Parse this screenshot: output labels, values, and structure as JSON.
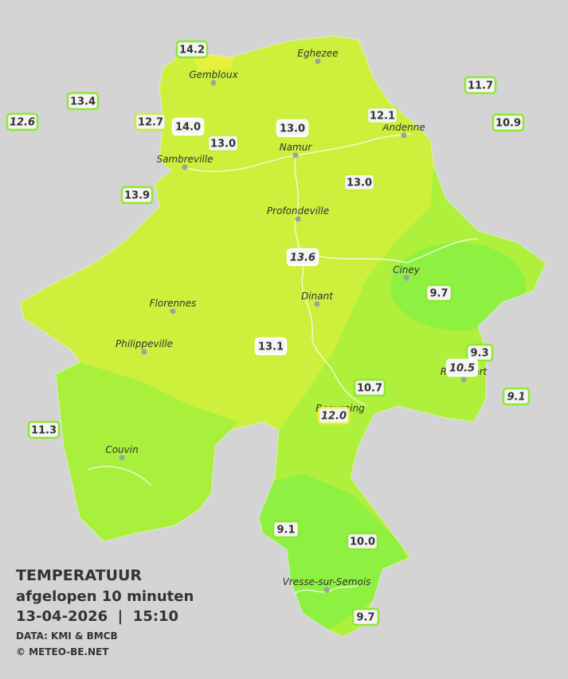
{
  "title": "TEMPERATUUR",
  "subtitle": "afgelopen 10 minuten",
  "timestamp": "13-04-2026  |  15:10",
  "source": "DATA: KMI & BMCB",
  "credit": "© METEO-BE.NET",
  "places": [
    "Eghezee",
    "Gembloux",
    "Andenne",
    "Namur",
    "Sambreville",
    "Profondeville",
    "Ciney",
    "Dinant",
    "Florennes",
    "Philippeville",
    "Rochefort",
    "Beauraing",
    "Couvin",
    "Vresse-sur-Semois"
  ],
  "stations": [
    {
      "label": "14.2",
      "italic": false
    },
    {
      "label": "13.4",
      "italic": false
    },
    {
      "label": "12.6",
      "italic": true
    },
    {
      "label": "12.7",
      "italic": false
    },
    {
      "label": "14.0",
      "italic": false
    },
    {
      "label": "13.0",
      "italic": false
    },
    {
      "label": "13.0",
      "italic": false
    },
    {
      "label": "12.1",
      "italic": false
    },
    {
      "label": "11.7",
      "italic": false
    },
    {
      "label": "10.9",
      "italic": false
    },
    {
      "label": "13.9",
      "italic": false
    },
    {
      "label": "13.0",
      "italic": false
    },
    {
      "label": "13.6",
      "italic": true
    },
    {
      "label": "9.7",
      "italic": false
    },
    {
      "label": "13.1",
      "italic": false
    },
    {
      "label": "9.3",
      "italic": false
    },
    {
      "label": "10.5",
      "italic": true
    },
    {
      "label": "9.1",
      "italic": true
    },
    {
      "label": "10.7",
      "italic": false
    },
    {
      "label": "12.0",
      "italic": true
    },
    {
      "label": "11.3",
      "italic": false
    },
    {
      "label": "9.1",
      "italic": false
    },
    {
      "label": "10.0",
      "italic": false
    },
    {
      "label": "9.7",
      "italic": false
    }
  ]
}
